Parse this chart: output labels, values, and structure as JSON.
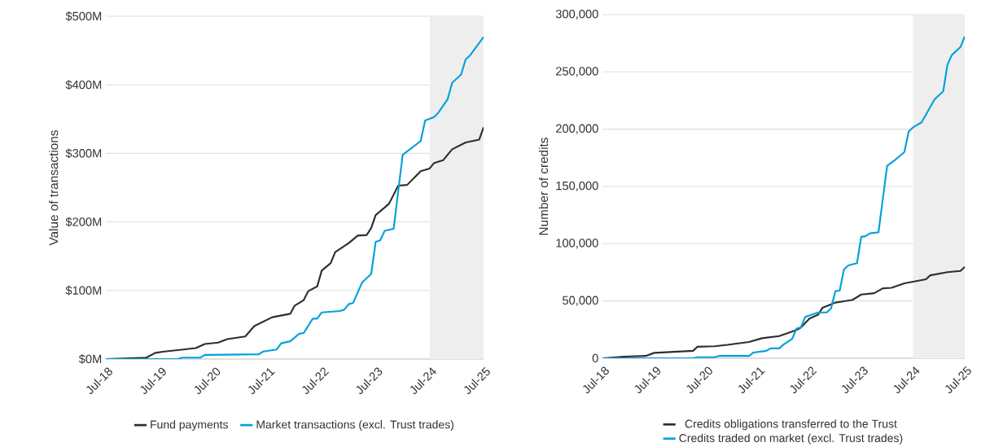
{
  "chart_data": [
    {
      "type": "line",
      "ylabel": "Value of transactions",
      "xlim": [
        "2018-07",
        "2025-07"
      ],
      "ylim": [
        0,
        500
      ],
      "xticks": [
        {
          "value": "2018-07",
          "label": "Jul-18"
        },
        {
          "value": "2019-07",
          "label": "Jul-19"
        },
        {
          "value": "2020-07",
          "label": "Jul-20"
        },
        {
          "value": "2021-07",
          "label": "Jul-21"
        },
        {
          "value": "2022-07",
          "label": "Jul-22"
        },
        {
          "value": "2023-07",
          "label": "Jul-23"
        },
        {
          "value": "2024-07",
          "label": "Jul-24"
        },
        {
          "value": "2025-07",
          "label": "Jul-25"
        }
      ],
      "yticks": [
        {
          "value": 0,
          "label": "$0M"
        },
        {
          "value": 100,
          "label": "$100M"
        },
        {
          "value": 200,
          "label": "$200M"
        },
        {
          "value": 300,
          "label": "$300M"
        },
        {
          "value": 400,
          "label": "$400M"
        },
        {
          "value": 500,
          "label": "$500M"
        }
      ],
      "grid": "y",
      "legend": "bottom",
      "marker": "none",
      "bands": [
        {
          "axis": "x",
          "from": "2024-07",
          "to": "2025-07",
          "color": "#eeeeee"
        }
      ],
      "series": [
        {
          "name": "Fund payments",
          "color": "#2e2e2e",
          "x": [
            "2018-07",
            "2019-04",
            "2019-06",
            "2019-08",
            "2019-11",
            "2020-03",
            "2020-05",
            "2020-08",
            "2020-10",
            "2021-02",
            "2021-04",
            "2021-08",
            "2021-12",
            "2022-01",
            "2022-03",
            "2022-04",
            "2022-06",
            "2022-07",
            "2022-09",
            "2022-10",
            "2023-01",
            "2023-03",
            "2023-05",
            "2023-06",
            "2023-07",
            "2023-09",
            "2023-10",
            "2023-12",
            "2024-02",
            "2024-05",
            "2024-07",
            "2024-08",
            "2024-10",
            "2024-12",
            "2025-03",
            "2025-06",
            "2025-07"
          ],
          "values": [
            0,
            2,
            9,
            11,
            13,
            16,
            22,
            24,
            29,
            33,
            48,
            61,
            66,
            78,
            86,
            99,
            106,
            129,
            140,
            156,
            169,
            180,
            181,
            191,
            210,
            221,
            227,
            253,
            254,
            274,
            278,
            286,
            290,
            306,
            316,
            320,
            338
          ]
        },
        {
          "name": "Market transactions (excl. Trust trades)",
          "color": "#00a0dc",
          "x": [
            "2018-07",
            "2019-11",
            "2019-12",
            "2020-04",
            "2020-05",
            "2021-05",
            "2021-06",
            "2021-09",
            "2021-10",
            "2021-12",
            "2022-02",
            "2022-03",
            "2022-05",
            "2022-06",
            "2022-07",
            "2022-11",
            "2022-12",
            "2023-01",
            "2023-02",
            "2023-04",
            "2023-06",
            "2023-07",
            "2023-08",
            "2023-09",
            "2023-11",
            "2024-01",
            "2024-05",
            "2024-06",
            "2024-08",
            "2024-09",
            "2024-11",
            "2024-12",
            "2025-02",
            "2025-03",
            "2025-04",
            "2025-07"
          ],
          "values": [
            0,
            0,
            2,
            2,
            6,
            7,
            11,
            14,
            23,
            26,
            37,
            38,
            59,
            59,
            68,
            70,
            72,
            80,
            82,
            112,
            124,
            171,
            173,
            187,
            190,
            298,
            318,
            348,
            353,
            360,
            379,
            403,
            415,
            437,
            443,
            470
          ]
        }
      ]
    },
    {
      "type": "line",
      "ylabel": "Number of credits",
      "xlim": [
        "2018-07",
        "2025-07"
      ],
      "ylim": [
        0,
        300000
      ],
      "xticks": [
        {
          "value": "2018-07",
          "label": "Jul-18"
        },
        {
          "value": "2019-07",
          "label": "Jul-19"
        },
        {
          "value": "2020-07",
          "label": "Jul-20"
        },
        {
          "value": "2021-07",
          "label": "Jul-21"
        },
        {
          "value": "2022-07",
          "label": "Jul-22"
        },
        {
          "value": "2023-07",
          "label": "Jul-23"
        },
        {
          "value": "2024-07",
          "label": "Jul-24"
        },
        {
          "value": "2025-07",
          "label": "Jul-25"
        }
      ],
      "yticks": [
        0,
        {
          "value": 50000,
          "label": "50,000"
        },
        {
          "value": 100000,
          "label": "100,000"
        },
        {
          "value": 150000,
          "label": "150,000"
        },
        {
          "value": 200000,
          "label": "200,000"
        },
        {
          "value": 250000,
          "label": "250,000"
        },
        {
          "value": 300000,
          "label": "300,000"
        }
      ],
      "grid": "y",
      "legend": "bottom",
      "marker": "none",
      "bands": [
        {
          "axis": "x",
          "from": "2024-07",
          "to": "2025-07",
          "color": "#eeeeee"
        }
      ],
      "series": [
        {
          "name": "Credits obligations transferred to the Trust",
          "color": "#2e2e2e",
          "x": [
            "2018-07",
            "2018-12",
            "2019-05",
            "2019-07",
            "2020-04",
            "2020-05",
            "2020-09",
            "2020-12",
            "2021-05",
            "2021-08",
            "2021-12",
            "2022-04",
            "2022-05",
            "2022-07",
            "2022-09",
            "2022-10",
            "2023-01",
            "2023-03",
            "2023-05",
            "2023-07",
            "2023-10",
            "2023-12",
            "2024-02",
            "2024-05",
            "2024-07",
            "2024-10",
            "2024-11",
            "2025-03",
            "2025-06",
            "2025-07"
          ],
          "values": [
            0,
            1400,
            2000,
            4700,
            6500,
            10000,
            10500,
            11700,
            14200,
            17500,
            19400,
            24700,
            26800,
            34600,
            38000,
            44000,
            48600,
            49800,
            51000,
            55600,
            56800,
            61000,
            61500,
            65400,
            66800,
            69000,
            72400,
            75200,
            76200,
            79700
          ]
        },
        {
          "name": "Credits traded on market (excl. Trust trades)",
          "color": "#00a0dc",
          "x": [
            "2018-07",
            "2020-04",
            "2020-05",
            "2020-09",
            "2020-10",
            "2021-05",
            "2021-06",
            "2021-09",
            "2021-10",
            "2021-12",
            "2022-01",
            "2022-03",
            "2022-04",
            "2022-05",
            "2022-06",
            "2022-09",
            "2022-11",
            "2022-12",
            "2023-01",
            "2023-02",
            "2023-03",
            "2023-04",
            "2023-06",
            "2023-07",
            "2023-08",
            "2023-09",
            "2023-11",
            "2024-01",
            "2024-03",
            "2024-05",
            "2024-06",
            "2024-07",
            "2024-09",
            "2024-12",
            "2025-02",
            "2025-03",
            "2025-04",
            "2025-06",
            "2025-07"
          ],
          "values": [
            0,
            0,
            900,
            900,
            2000,
            2000,
            5000,
            6500,
            8600,
            8600,
            12000,
            17000,
            26000,
            27000,
            36000,
            40000,
            40000,
            43500,
            58600,
            59000,
            77600,
            81000,
            83000,
            106000,
            106500,
            109000,
            110000,
            168000,
            173600,
            180000,
            198000,
            201600,
            206000,
            226000,
            233000,
            256500,
            264700,
            271700,
            281000
          ]
        }
      ]
    }
  ]
}
